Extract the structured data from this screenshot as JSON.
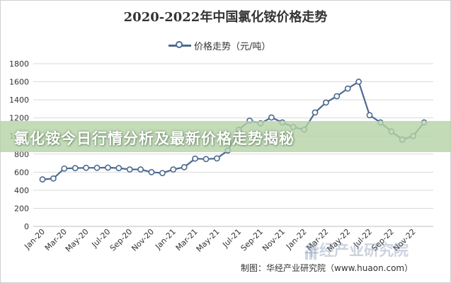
{
  "page": {
    "banner_text": "氯化铵今日行情分析及最新价格走势揭秘",
    "source_text": "制图：华经产业研究院（www.huaon.com）",
    "watermark_text": "华经产业研究院"
  },
  "chart_data": {
    "type": "line",
    "title": "2020-2022年中国氯化铵价格走势",
    "xlabel": "",
    "ylabel": "",
    "ylim": [
      0,
      1800
    ],
    "yticks": [
      0,
      200,
      400,
      600,
      800,
      1000,
      1200,
      1400,
      1600,
      1800
    ],
    "grid": true,
    "legend_position": "top",
    "xtick_labels": [
      "Jan-20",
      "Mar-20",
      "May-20",
      "Jul-20",
      "Sep-20",
      "Nov-20",
      "Jan-21",
      "Mar-21",
      "May-21",
      "Jul-21",
      "Sep-21",
      "Nov-21",
      "Jan-22",
      "Mar-22",
      "May-22",
      "Jul-22",
      "Sep-22",
      "Nov-22"
    ],
    "series": [
      {
        "name": "价格走势（元/吨）",
        "color": "#4d6a8f",
        "points": [
          {
            "x": "Jan-20",
            "y": 520
          },
          {
            "x": "Feb-20",
            "y": 530
          },
          {
            "x": "Mar-20",
            "y": 640
          },
          {
            "x": "Apr-20",
            "y": 645
          },
          {
            "x": "May-20",
            "y": 648
          },
          {
            "x": "Jun-20",
            "y": 648
          },
          {
            "x": "Jul-20",
            "y": 650
          },
          {
            "x": "Aug-20",
            "y": 645
          },
          {
            "x": "Sep-20",
            "y": 630
          },
          {
            "x": "Oct-20",
            "y": 630
          },
          {
            "x": "Nov-20",
            "y": 600
          },
          {
            "x": "Dec-20",
            "y": 590
          },
          {
            "x": "Jan-21",
            "y": 630
          },
          {
            "x": "Feb-21",
            "y": 655
          },
          {
            "x": "Mar-21",
            "y": 750
          },
          {
            "x": "Apr-21",
            "y": 745
          },
          {
            "x": "May-21",
            "y": 752
          },
          {
            "x": "Jun-21",
            "y": 840
          },
          {
            "x": "Jul-21",
            "y": 1070
          },
          {
            "x": "Aug-21",
            "y": 1170
          },
          {
            "x": "Sep-21",
            "y": 1140
          },
          {
            "x": "Oct-21",
            "y": 1205
          },
          {
            "x": "Nov-21",
            "y": 1150
          },
          {
            "x": "Dec-21",
            "y": 1100
          },
          {
            "x": "Jan-22",
            "y": 1070
          },
          {
            "x": "Feb-22",
            "y": 1260
          },
          {
            "x": "Mar-22",
            "y": 1370
          },
          {
            "x": "Apr-22",
            "y": 1440
          },
          {
            "x": "May-22",
            "y": 1525
          },
          {
            "x": "Jun-22",
            "y": 1600
          },
          {
            "x": "Jul-22",
            "y": 1230
          },
          {
            "x": "Aug-22",
            "y": 1150
          },
          {
            "x": "Sep-22",
            "y": 1050
          },
          {
            "x": "Oct-22",
            "y": 960
          },
          {
            "x": "Nov-22",
            "y": 1000
          },
          {
            "x": "Dec-22",
            "y": 1150
          }
        ]
      }
    ]
  }
}
